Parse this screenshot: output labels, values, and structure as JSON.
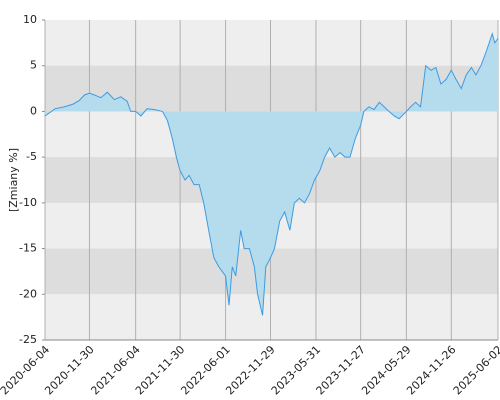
{
  "chart_data": {
    "type": "area",
    "y_label": "[Zmiany %]",
    "x": [
      "2020-06-04",
      "2020-07-15",
      "2020-08-20",
      "2020-09-25",
      "2020-10-20",
      "2020-11-10",
      "2020-11-30",
      "2020-12-20",
      "2021-01-15",
      "2021-02-10",
      "2021-03-10",
      "2021-04-05",
      "2021-05-01",
      "2021-05-15",
      "2021-06-04",
      "2021-06-25",
      "2021-07-20",
      "2021-08-20",
      "2021-09-20",
      "2021-10-10",
      "2021-10-30",
      "2021-11-15",
      "2021-11-30",
      "2021-12-20",
      "2022-01-05",
      "2022-01-25",
      "2022-02-15",
      "2022-03-05",
      "2022-03-25",
      "2022-04-15",
      "2022-05-05",
      "2022-06-01",
      "2022-06-15",
      "2022-06-28",
      "2022-07-12",
      "2022-08-01",
      "2022-08-15",
      "2022-09-05",
      "2022-09-25",
      "2022-10-08",
      "2022-10-28",
      "2022-11-10",
      "2022-11-29",
      "2022-12-15",
      "2023-01-05",
      "2023-01-25",
      "2023-02-15",
      "2023-03-05",
      "2023-03-25",
      "2023-04-15",
      "2023-05-05",
      "2023-05-25",
      "2023-06-15",
      "2023-07-05",
      "2023-07-25",
      "2023-08-15",
      "2023-09-05",
      "2023-09-25",
      "2023-10-15",
      "2023-11-05",
      "2023-11-27",
      "2023-12-10",
      "2023-12-30",
      "2024-01-20",
      "2024-02-10",
      "2024-03-01",
      "2024-03-20",
      "2024-04-10",
      "2024-04-30",
      "2024-05-29",
      "2024-06-15",
      "2024-07-05",
      "2024-07-25",
      "2024-08-15",
      "2024-09-05",
      "2024-09-25",
      "2024-10-15",
      "2024-11-05",
      "2024-11-26",
      "2024-12-15",
      "2025-01-05",
      "2025-01-25",
      "2025-02-15",
      "2025-03-05",
      "2025-03-25",
      "2025-04-15",
      "2025-05-10",
      "2025-05-20",
      "2025-06-02"
    ],
    "values": [
      -0.5,
      0.3,
      0.5,
      0.8,
      1.2,
      1.8,
      2.0,
      1.8,
      1.5,
      2.1,
      1.3,
      1.6,
      1.1,
      0.0,
      0.0,
      -0.5,
      0.3,
      0.2,
      0.0,
      -1.0,
      -3.0,
      -5.0,
      -6.5,
      -7.5,
      -7.0,
      -8.0,
      -8.0,
      -10.0,
      -13.0,
      -16.0,
      -17.0,
      -18.0,
      -21.2,
      -17.0,
      -18.0,
      -13.0,
      -15.0,
      -15.0,
      -17.0,
      -20.0,
      -22.3,
      -17.0,
      -16.0,
      -15.0,
      -12.0,
      -11.0,
      -13.0,
      -10.0,
      -9.5,
      -10.0,
      -9.0,
      -7.5,
      -6.5,
      -5.0,
      -4.0,
      -5.0,
      -4.5,
      -5.0,
      -5.0,
      -3.0,
      -1.5,
      0.0,
      0.5,
      0.2,
      1.0,
      0.5,
      0.0,
      -0.5,
      -0.8,
      0.0,
      0.5,
      1.0,
      0.5,
      5.0,
      4.5,
      4.8,
      3.0,
      3.5,
      4.5,
      3.5,
      2.5,
      4.0,
      4.8,
      4.0,
      5.0,
      6.5,
      8.5,
      7.5,
      8.0
    ],
    "color": "#3d9be0",
    "area_color": "#b5dced",
    "xlim": [
      "2020-06-04",
      "2025-06-02"
    ],
    "xticks": [
      "2020-06-04",
      "2020-11-30",
      "2021-06-04",
      "2021-11-30",
      "2022-06-01",
      "2022-11-29",
      "2023-05-31",
      "2023-11-27",
      "2024-05-29",
      "2024-11-26",
      "2025-06-02"
    ],
    "ylim": [
      -25,
      10
    ],
    "yticks": [
      10,
      5,
      0,
      -5,
      -10,
      -15,
      -20,
      -25
    ],
    "grid": true
  }
}
